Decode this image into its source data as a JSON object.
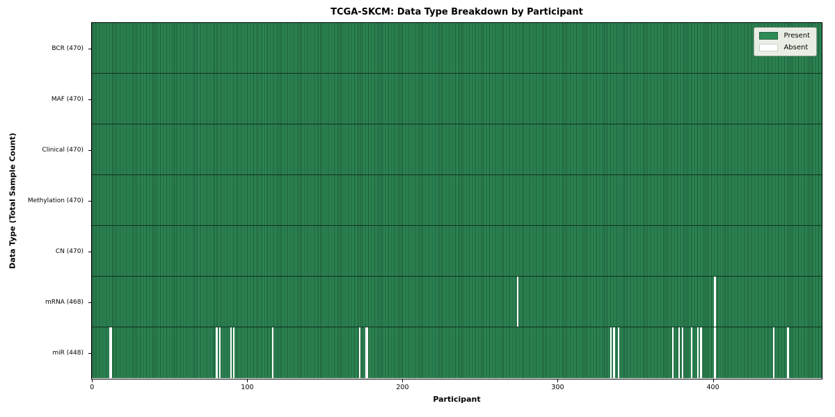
{
  "title": "TCGA-SKCM: Data Type Breakdown by Participant",
  "chart_data": {
    "type": "heatmap",
    "title": "TCGA-SKCM: Data Type Breakdown by Participant",
    "xlabel": "Participant",
    "ylabel": "Data Type (Total Sample Count)",
    "xlim": [
      0,
      470
    ],
    "x_ticks": [
      0,
      100,
      200,
      300,
      400
    ],
    "n_participants": 470,
    "grid": false,
    "legend_position": "upper right",
    "legend_entries": [
      "Present",
      "Absent"
    ],
    "colors": {
      "present": "#2e8b57",
      "present_edge": "#1d5937",
      "absent": "#ffffff",
      "row_divider": "#10301e"
    },
    "rows": [
      {
        "label": "BCR (470)",
        "data_type": "BCR",
        "present_count": 470,
        "absent_participants": []
      },
      {
        "label": "MAF (470)",
        "data_type": "MAF",
        "present_count": 470,
        "absent_participants": []
      },
      {
        "label": "Clinical (470)",
        "data_type": "Clinical",
        "present_count": 470,
        "absent_participants": []
      },
      {
        "label": "Methylation (470)",
        "data_type": "Methylation",
        "present_count": 470,
        "absent_participants": []
      },
      {
        "label": "CN (470)",
        "data_type": "CN",
        "present_count": 470,
        "absent_participants": []
      },
      {
        "label": "mRNA (468)",
        "data_type": "mRNA",
        "present_count": 468,
        "absent_participants": [
          274,
          401
        ]
      },
      {
        "label": "miR (448)",
        "data_type": "miR",
        "present_count": 448,
        "absent_participants": [
          11,
          12,
          80,
          82,
          89,
          91,
          116,
          172,
          176,
          177,
          334,
          336,
          339,
          374,
          378,
          380,
          386,
          390,
          392,
          401,
          439,
          448
        ]
      }
    ]
  }
}
